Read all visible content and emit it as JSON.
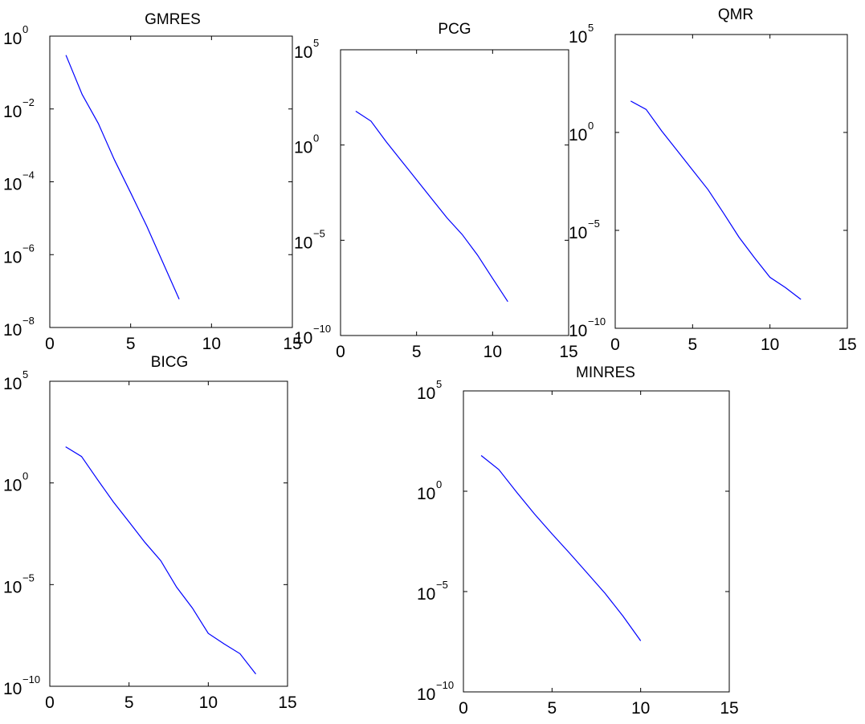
{
  "chart_data": [
    {
      "type": "line",
      "title": "GMRES",
      "xlabel": "",
      "ylabel": "",
      "xlim": [
        0,
        15
      ],
      "ylim_log10": [
        -8,
        0
      ],
      "y_scale": "log",
      "grid": false,
      "x_ticks": [
        "0",
        "5",
        "10",
        "15"
      ],
      "y_ticks": [
        {
          "base": "10",
          "exp": "0"
        },
        {
          "base": "10",
          "exp": "−2"
        },
        {
          "base": "10",
          "exp": "−4"
        },
        {
          "base": "10",
          "exp": "−6"
        },
        {
          "base": "10",
          "exp": "−8"
        }
      ],
      "series": [
        {
          "color": "#0000ff",
          "x": [
            1,
            2,
            3,
            4,
            5,
            6,
            7,
            8
          ],
          "y": [
            0.3,
            0.025,
            0.004,
            0.0004,
            5e-05,
            6e-06,
            6e-07,
            6e-08
          ]
        }
      ]
    },
    {
      "type": "line",
      "title": "PCG",
      "xlabel": "",
      "ylabel": "",
      "xlim": [
        0,
        15
      ],
      "ylim_log10": [
        -10,
        5
      ],
      "y_scale": "log",
      "grid": false,
      "x_ticks": [
        "0",
        "5",
        "10",
        "15"
      ],
      "y_ticks": [
        {
          "base": "10",
          "exp": "5"
        },
        {
          "base": "10",
          "exp": "0"
        },
        {
          "base": "10",
          "exp": "−5"
        },
        {
          "base": "10",
          "exp": "−10"
        }
      ],
      "series": [
        {
          "color": "#0000ff",
          "x": [
            1,
            2,
            3,
            4,
            5,
            6,
            7,
            8,
            9,
            10,
            11
          ],
          "y": [
            60,
            18,
            1.5,
            0.15,
            0.015,
            0.0015,
            0.00015,
            2e-05,
            1.7e-06,
            1e-07,
            6e-09
          ]
        }
      ]
    },
    {
      "type": "line",
      "title": "QMR",
      "xlabel": "",
      "ylabel": "",
      "xlim": [
        0,
        15
      ],
      "ylim_log10": [
        -10,
        5
      ],
      "y_scale": "log",
      "grid": false,
      "x_ticks": [
        "0",
        "5",
        "10",
        "15"
      ],
      "y_ticks": [
        {
          "base": "10",
          "exp": "5"
        },
        {
          "base": "10",
          "exp": "0"
        },
        {
          "base": "10",
          "exp": "−5"
        },
        {
          "base": "10",
          "exp": "−10"
        }
      ],
      "series": [
        {
          "color": "#0000ff",
          "x": [
            1,
            2,
            3,
            4,
            5,
            6,
            7,
            8,
            9,
            10,
            11,
            12
          ],
          "y": [
            40,
            15,
            1.2,
            0.12,
            0.012,
            0.0012,
            7.5e-05,
            4.5e-06,
            4e-07,
            4e-08,
            1.2e-08,
            3e-09
          ]
        }
      ]
    },
    {
      "type": "line",
      "title": "BICG",
      "xlabel": "",
      "ylabel": "",
      "xlim": [
        0,
        15
      ],
      "ylim_log10": [
        -10,
        5
      ],
      "y_scale": "log",
      "grid": false,
      "x_ticks": [
        "0",
        "5",
        "10",
        "15"
      ],
      "y_ticks": [
        {
          "base": "10",
          "exp": "5"
        },
        {
          "base": "10",
          "exp": "0"
        },
        {
          "base": "10",
          "exp": "−5"
        },
        {
          "base": "10",
          "exp": "−10"
        }
      ],
      "series": [
        {
          "color": "#0000ff",
          "x": [
            1,
            2,
            3,
            4,
            5,
            6,
            7,
            8,
            9,
            10,
            11,
            12,
            13
          ],
          "y": [
            60,
            20,
            1.5,
            0.12,
            0.012,
            0.0012,
            0.00015,
            7.5e-06,
            7e-07,
            4e-08,
            1.2e-08,
            4e-09,
            4e-10
          ]
        }
      ]
    },
    {
      "type": "line",
      "title": "MINRES",
      "xlabel": "",
      "ylabel": "",
      "xlim": [
        0,
        15
      ],
      "ylim_log10": [
        -10,
        5
      ],
      "y_scale": "log",
      "grid": false,
      "x_ticks": [
        "0",
        "5",
        "10",
        "15"
      ],
      "y_ticks": [
        {
          "base": "10",
          "exp": "5"
        },
        {
          "base": "10",
          "exp": "0"
        },
        {
          "base": "10",
          "exp": "−5"
        },
        {
          "base": "10",
          "exp": "−10"
        }
      ],
      "series": [
        {
          "color": "#0000ff",
          "x": [
            1,
            2,
            3,
            4,
            5,
            6,
            7,
            8,
            9,
            10
          ],
          "y": [
            60,
            12,
            0.9,
            0.075,
            0.0075,
            0.0008,
            8e-05,
            8e-06,
            6e-07,
            3.5e-08
          ]
        }
      ]
    }
  ]
}
